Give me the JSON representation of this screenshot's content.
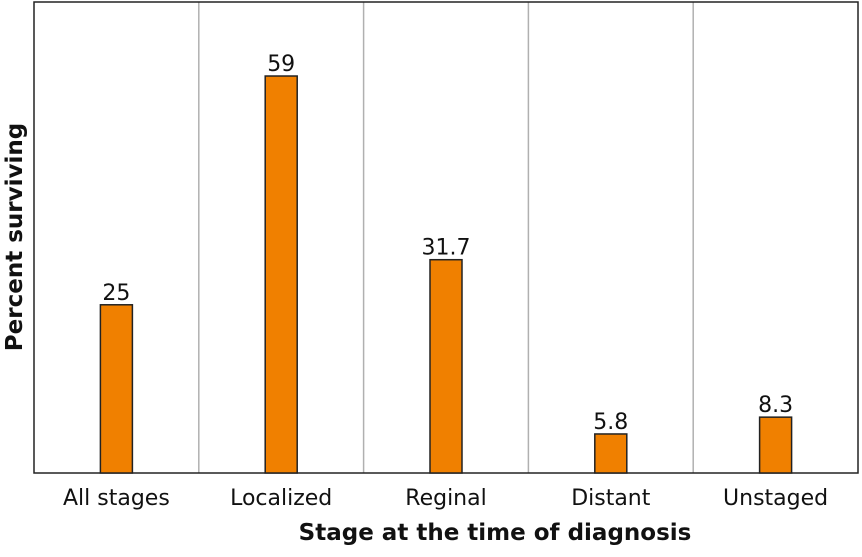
{
  "chart_data": {
    "type": "bar",
    "xlabel": "Stage at the time of diagnosis",
    "ylabel": "Percent surviving",
    "categories": [
      "All stages",
      "Localized",
      "Reginal",
      "Distant",
      "Unstaged"
    ],
    "values": [
      25,
      59,
      31.7,
      5.8,
      8.3
    ],
    "color": "#f08000",
    "ylim": [
      0,
      70
    ]
  }
}
